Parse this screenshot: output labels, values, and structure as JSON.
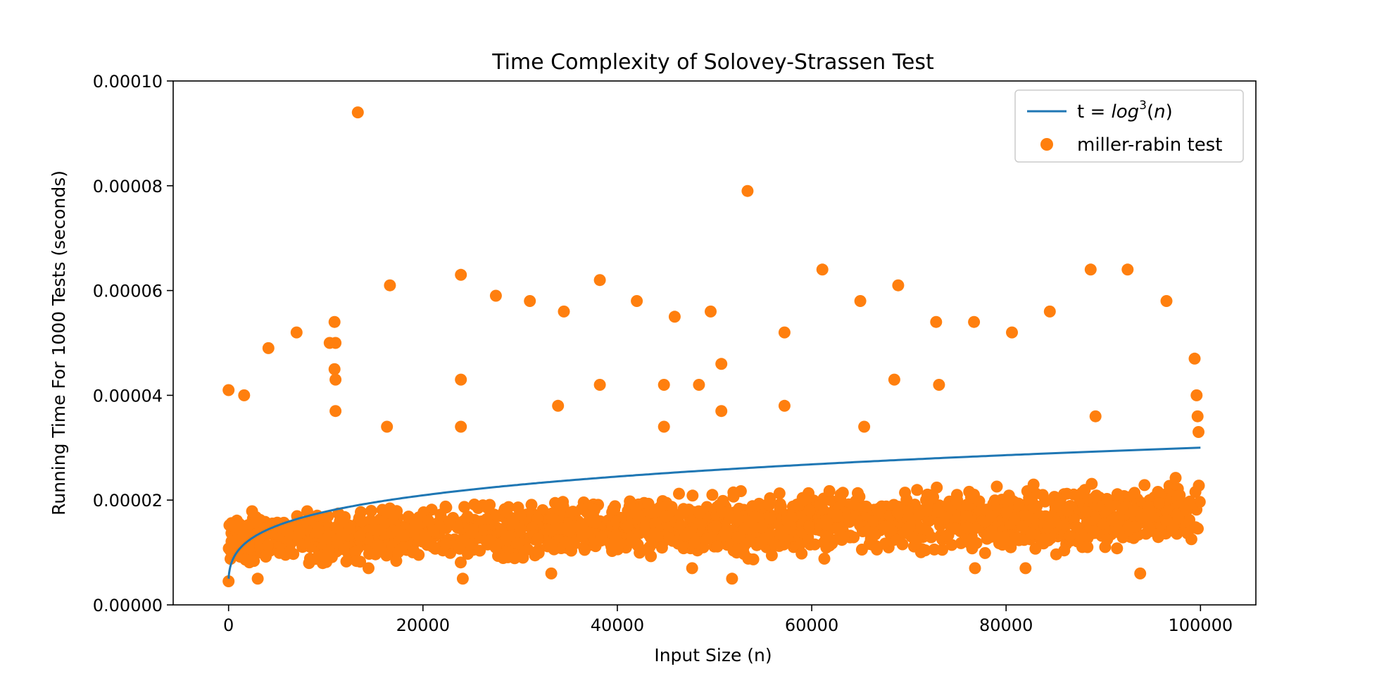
{
  "chart_data": {
    "type": "scatter",
    "title": "Time Complexity of Solovey-Strassen Test",
    "xlabel": "Input Size (n)",
    "ylabel": "Running Time For 1000 Tests (seconds)",
    "xlim": [
      -5700,
      105700
    ],
    "ylim": [
      0,
      0.0001
    ],
    "xticks": [
      0,
      20000,
      40000,
      60000,
      80000,
      100000
    ],
    "xtick_labels": [
      "0",
      "20000",
      "40000",
      "60000",
      "80000",
      "100000"
    ],
    "yticks": [
      0,
      2e-05,
      4e-05,
      6e-05,
      8e-05,
      0.0001
    ],
    "ytick_labels": [
      "0.00000",
      "0.00002",
      "0.00004",
      "0.00006",
      "0.00008",
      "0.00010"
    ],
    "grid": false,
    "legend": {
      "position": "top-right",
      "entries": [
        {
          "label_prefix": "t = ",
          "label_math": "log",
          "label_sup": "3",
          "label_suffix": "(n)",
          "label_suffix_paren_open": "(",
          "label_suffix_var": "n",
          "label_suffix_paren_close": ")"
        },
        {
          "label": "miller-rabin test"
        }
      ]
    },
    "series": [
      {
        "name": "t = log³(n)",
        "kind": "line",
        "color": "#1f77b4",
        "x_start": 1,
        "x_end": 100000,
        "y_start": 5e-06,
        "y_end": 3e-05,
        "formula": "log^3(n)"
      },
      {
        "name": "miller-rabin test",
        "kind": "scatter",
        "color": "#ff7f0e",
        "points": [
          [
            0,
            4.1e-05
          ],
          [
            1600,
            4e-05
          ],
          [
            4100,
            4.9e-05
          ],
          [
            7000,
            5.2e-05
          ],
          [
            10400,
            5e-05
          ],
          [
            10900,
            5.4e-05
          ],
          [
            11000,
            5e-05
          ],
          [
            10900,
            4.5e-05
          ],
          [
            11000,
            4.3e-05
          ],
          [
            11000,
            3.7e-05
          ],
          [
            13300,
            9.4e-05
          ],
          [
            16600,
            6.1e-05
          ],
          [
            16300,
            3.4e-05
          ],
          [
            23900,
            6.3e-05
          ],
          [
            23900,
            4.3e-05
          ],
          [
            23900,
            3.4e-05
          ],
          [
            27500,
            5.9e-05
          ],
          [
            31000,
            5.8e-05
          ],
          [
            34500,
            5.6e-05
          ],
          [
            33900,
            3.8e-05
          ],
          [
            38200,
            6.2e-05
          ],
          [
            38200,
            4.2e-05
          ],
          [
            42000,
            5.8e-05
          ],
          [
            44800,
            4.2e-05
          ],
          [
            44800,
            3.4e-05
          ],
          [
            45900,
            5.5e-05
          ],
          [
            48400,
            4.2e-05
          ],
          [
            49600,
            5.6e-05
          ],
          [
            50700,
            4.6e-05
          ],
          [
            50700,
            3.7e-05
          ],
          [
            53400,
            7.9e-05
          ],
          [
            57200,
            5.2e-05
          ],
          [
            57200,
            3.8e-05
          ],
          [
            61100,
            6.4e-05
          ],
          [
            65000,
            5.8e-05
          ],
          [
            65400,
            3.4e-05
          ],
          [
            68900,
            6.1e-05
          ],
          [
            68500,
            4.3e-05
          ],
          [
            72800,
            5.4e-05
          ],
          [
            73100,
            4.2e-05
          ],
          [
            76700,
            5.4e-05
          ],
          [
            80600,
            5.2e-05
          ],
          [
            84500,
            5.6e-05
          ],
          [
            88700,
            6.4e-05
          ],
          [
            89200,
            3.6e-05
          ],
          [
            92500,
            6.4e-05
          ],
          [
            96500,
            5.8e-05
          ],
          [
            99400,
            4.7e-05
          ],
          [
            99600,
            4e-05
          ],
          [
            99700,
            3.6e-05
          ],
          [
            99800,
            3.3e-05
          ],
          [
            0,
            4.5e-06
          ],
          [
            51800,
            5e-06
          ],
          [
            24100,
            5e-06
          ],
          [
            93800,
            6e-06
          ],
          [
            33200,
            6e-06
          ],
          [
            3000,
            5e-06
          ],
          [
            14400,
            7e-06
          ],
          [
            47700,
            7e-06
          ],
          [
            76800,
            7e-06
          ],
          [
            82000,
            7e-06
          ]
        ],
        "band": {
          "x_start": 0,
          "x_end": 100000,
          "y_low_start": 6e-06,
          "y_low_end": 9e-06,
          "y_high_start": 1.9e-05,
          "y_high_end": 2.6e-05,
          "count": 1900
        }
      }
    ]
  }
}
